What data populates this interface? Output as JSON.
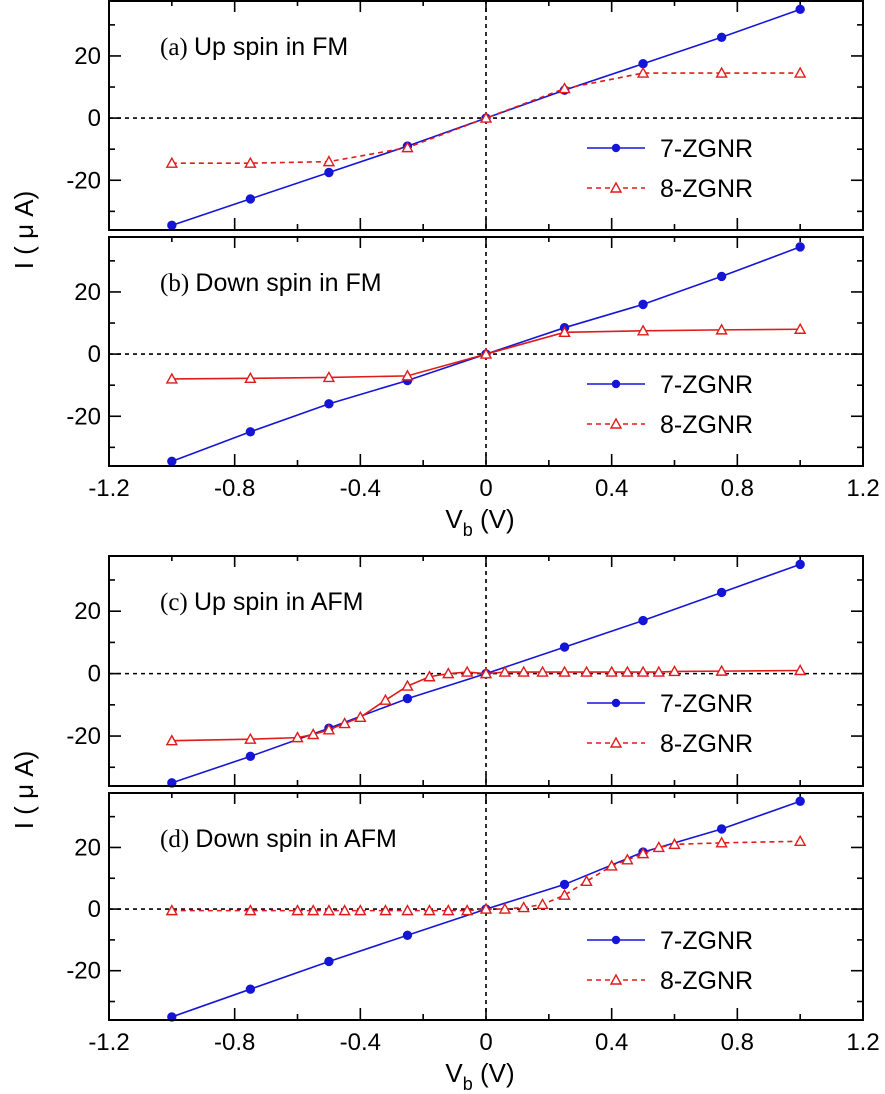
{
  "colors": {
    "series_7": "#1515d8",
    "series_8": "#e01b1b",
    "axis": "#000000"
  },
  "axes": {
    "xlabel_main": "V",
    "xlabel_sub": "b",
    "xlabel_unit": " (V)",
    "ylabel": "I ( μ A)",
    "xlim": [
      -1.2,
      1.2
    ],
    "ylim": [
      -36,
      38
    ],
    "xticks": [
      "-1.2",
      "-0.8",
      "-0.4",
      "0",
      "0.4",
      "0.8",
      "1.2"
    ],
    "yticks": [
      "20",
      "0",
      "-20"
    ]
  },
  "chart_data": [
    {
      "type": "line",
      "panel_tag": "(a)",
      "title": "Up spin in FM",
      "series": [
        {
          "name": "7-ZGNR",
          "line": "solid",
          "fill": "solid",
          "marker": "circle",
          "x": [
            -1,
            -0.75,
            -0.5,
            -0.25,
            0,
            0.25,
            0.5,
            0.75,
            1
          ],
          "y": [
            -34.5,
            -26,
            -17.5,
            -9,
            0,
            9,
            17.5,
            26,
            35
          ]
        },
        {
          "name": "8-ZGNR",
          "line": "dashed",
          "fill": "open",
          "marker": "triangle",
          "x": [
            -1,
            -0.75,
            -0.5,
            -0.25,
            0,
            0.25,
            0.5,
            0.75,
            1
          ],
          "y": [
            -14.5,
            -14.5,
            -14,
            -9.5,
            0,
            9.5,
            14.5,
            14.5,
            14.5
          ]
        }
      ]
    },
    {
      "type": "line",
      "panel_tag": "(b)",
      "title": "Down spin in FM",
      "series": [
        {
          "name": "7-ZGNR",
          "line": "solid",
          "fill": "solid",
          "marker": "circle",
          "x": [
            -1,
            -0.75,
            -0.5,
            -0.25,
            0,
            0.25,
            0.5,
            0.75,
            1
          ],
          "y": [
            -34.5,
            -25,
            -16,
            -8.5,
            0,
            8.5,
            16,
            25,
            34.5
          ]
        },
        {
          "name": "8-ZGNR",
          "line": "solid",
          "fill": "open",
          "marker": "triangle",
          "x": [
            -1,
            -0.75,
            -0.5,
            -0.25,
            0,
            0.25,
            0.5,
            0.75,
            1
          ],
          "y": [
            -8,
            -7.8,
            -7.5,
            -7,
            0,
            7,
            7.5,
            7.8,
            8
          ]
        }
      ]
    },
    {
      "type": "line",
      "panel_tag": "(c)",
      "title": "Up spin in AFM",
      "series": [
        {
          "name": "7-ZGNR",
          "line": "solid",
          "fill": "solid",
          "marker": "circle",
          "x": [
            -1,
            -0.75,
            -0.5,
            -0.25,
            0,
            0.25,
            0.5,
            0.75,
            1
          ],
          "y": [
            -35,
            -26.5,
            -17.5,
            -8,
            0,
            8.5,
            17,
            26,
            35
          ]
        },
        {
          "name": "8-ZGNR",
          "line": "solid",
          "fill": "open",
          "marker": "triangle",
          "x": [
            -1,
            -0.75,
            -0.6,
            -0.55,
            -0.5,
            -0.45,
            -0.4,
            -0.32,
            -0.25,
            -0.18,
            -0.12,
            -0.06,
            0,
            0.06,
            0.12,
            0.18,
            0.25,
            0.32,
            0.4,
            0.45,
            0.5,
            0.55,
            0.6,
            0.75,
            1
          ],
          "y": [
            -21.5,
            -21,
            -20.5,
            -19.5,
            -18,
            -16,
            -14,
            -8.5,
            -4,
            -1,
            0,
            0.5,
            0,
            0.5,
            0.5,
            0.5,
            0.5,
            0.5,
            0.5,
            0.5,
            0.5,
            0.5,
            0.7,
            0.8,
            1
          ]
        }
      ]
    },
    {
      "type": "line",
      "panel_tag": "(d)",
      "title": "Down spin in AFM",
      "series": [
        {
          "name": "7-ZGNR",
          "line": "solid",
          "fill": "solid",
          "marker": "circle",
          "x": [
            -1,
            -0.75,
            -0.5,
            -0.25,
            0,
            0.25,
            0.5,
            0.75,
            1
          ],
          "y": [
            -35,
            -26,
            -17,
            -8.5,
            0,
            8,
            18.5,
            26,
            35
          ]
        },
        {
          "name": "8-ZGNR",
          "line": "dashed",
          "fill": "open",
          "marker": "triangle",
          "x": [
            -1,
            -0.75,
            -0.6,
            -0.55,
            -0.5,
            -0.45,
            -0.4,
            -0.32,
            -0.25,
            -0.18,
            -0.12,
            -0.06,
            0,
            0.06,
            0.12,
            0.18,
            0.25,
            0.32,
            0.4,
            0.45,
            0.5,
            0.55,
            0.6,
            0.75,
            1
          ],
          "y": [
            -0.5,
            -0.5,
            -0.5,
            -0.5,
            -0.5,
            -0.5,
            -0.5,
            -0.5,
            -0.5,
            -0.5,
            -0.5,
            -0.5,
            0,
            0,
            0.5,
            1.5,
            4.5,
            9,
            14,
            16,
            18,
            20,
            21,
            21.5,
            22
          ]
        }
      ]
    }
  ]
}
